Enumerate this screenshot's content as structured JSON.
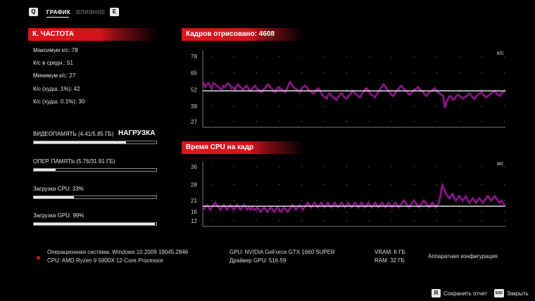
{
  "top_nav": {
    "left_key": "Q",
    "right_key": "E",
    "tabs": [
      {
        "label": "ГРАФИК",
        "active": true
      },
      {
        "label": "ВЛИЯНИЕ",
        "active": false
      }
    ]
  },
  "fps_panel": {
    "title": "К. ЧАСТОТА",
    "stats": [
      "Максимум к/с: 78",
      "К/с в средн.: 51",
      "Минимум к/с: 27",
      "К/с (худш. 1%): 42",
      "К/с (худш. 0.1%): 30"
    ]
  },
  "load_panel": {
    "heading": "НАГРУЗКА",
    "meters": [
      {
        "label": "ВИДЕОПАМЯТЬ (4.41/5.85 ГБ)",
        "fraction": 0.75
      },
      {
        "label": "ОПЕР. ПАМЯТЬ (5.76/31.91 ГБ)",
        "fraction": 0.18
      },
      {
        "label": "Загрузка CPU: 33%",
        "fraction": 0.33
      },
      {
        "label": "Загрузка GPU: 99%",
        "fraction": 0.99
      }
    ]
  },
  "colors": {
    "accent_red": "#e0141c",
    "series_purple": "#a21d9b",
    "mean_line": "#f2f2f2"
  },
  "chart_data": [
    {
      "type": "line",
      "title": "Кадров отрисовано: 4608",
      "ylabel": "к/с",
      "yticks": [
        78,
        65,
        52,
        39,
        27
      ],
      "ylim": [
        27,
        78
      ],
      "mean": 51,
      "grid": "dotted",
      "series": [
        {
          "values": [
            58,
            54,
            56,
            57,
            55,
            53,
            57,
            56,
            55,
            54,
            53,
            52,
            55,
            54,
            56,
            57,
            55,
            53,
            54,
            52,
            55,
            56,
            54,
            53,
            52,
            54,
            55,
            53,
            51,
            52,
            54,
            55,
            53,
            52,
            51,
            50,
            52,
            53,
            55,
            56,
            54,
            53,
            51,
            50,
            52,
            54,
            53,
            52,
            51,
            50,
            52,
            55,
            58,
            56,
            54,
            53,
            52,
            51,
            50,
            53,
            54,
            55,
            54,
            52,
            51,
            50,
            49,
            50,
            52,
            53,
            51,
            49,
            47,
            46,
            45,
            48,
            49,
            47,
            46,
            45,
            44,
            46,
            48,
            49,
            47,
            46,
            45,
            47,
            48,
            50,
            51,
            49,
            48,
            47,
            46,
            48,
            50,
            52,
            53,
            51,
            49,
            48,
            47,
            46,
            48,
            50,
            52,
            54,
            56,
            55,
            53,
            51,
            50,
            48,
            47,
            49,
            51,
            52,
            54,
            55,
            53,
            52,
            51,
            49,
            48,
            50,
            51,
            52,
            53,
            54,
            52,
            51,
            50,
            48,
            47,
            49,
            50,
            51,
            52,
            53,
            51,
            50,
            49,
            48,
            47,
            38,
            42,
            45,
            47,
            46,
            44,
            45,
            47,
            48,
            47,
            46,
            45,
            46,
            47,
            48,
            49,
            47,
            46,
            45,
            47,
            48,
            49,
            50,
            48,
            47,
            46,
            47,
            48,
            49,
            50,
            51,
            49,
            48,
            47,
            49,
            50,
            51
          ]
        }
      ]
    },
    {
      "type": "line",
      "title": "Время CPU на кадр",
      "ylabel": "мс",
      "yticks": [
        36,
        28,
        21,
        16,
        12
      ],
      "ylim": [
        12,
        36
      ],
      "mean": 18.5,
      "grid": "dotted",
      "series": [
        {
          "values": [
            17,
            18,
            19,
            18,
            17,
            18,
            19,
            20,
            19,
            18,
            17,
            18,
            19,
            18,
            17,
            18,
            19,
            18,
            17,
            18,
            19,
            18,
            17,
            18,
            19,
            18,
            17,
            18,
            17,
            18,
            17,
            17,
            18,
            17,
            16,
            17,
            18,
            17,
            16,
            17,
            18,
            17,
            16,
            17,
            18,
            17,
            16,
            17,
            18,
            17,
            16,
            17,
            18,
            19,
            18,
            17,
            18,
            19,
            18,
            17,
            18,
            19,
            20,
            19,
            18,
            19,
            20,
            19,
            18,
            19,
            20,
            19,
            18,
            19,
            20,
            19,
            18,
            19,
            20,
            19,
            18,
            19,
            20,
            19,
            18,
            19,
            20,
            19,
            18,
            19,
            20,
            19,
            18,
            19,
            20,
            19,
            18,
            19,
            20,
            19,
            18,
            19,
            20,
            19,
            18,
            19,
            20,
            19,
            18,
            19,
            20,
            19,
            18,
            19,
            20,
            19,
            18,
            19,
            20,
            21,
            20,
            19,
            18,
            19,
            20,
            21,
            20,
            19,
            18,
            19,
            20,
            21,
            20,
            19,
            18,
            19,
            20,
            19,
            18,
            19,
            20,
            24,
            28,
            26,
            24,
            23,
            22,
            23,
            24,
            22,
            21,
            22,
            23,
            22,
            21,
            22,
            23,
            21,
            20,
            21,
            22,
            21,
            20,
            21,
            22,
            21,
            20,
            21,
            22,
            23,
            22,
            21,
            22,
            23,
            22,
            21,
            20,
            21,
            20,
            19
          ]
        }
      ]
    }
  ],
  "system_info": {
    "os": "Операционная система: Windows 10 2009 19045.2846",
    "cpu": "CPU: AMD Ryzen 9 5900X 12-Core Processor",
    "gpu": "GPU: NVIDIA GeForce GTX 1660 SUPER",
    "driver": "Драйвер GPU: 516.59",
    "vram": "VRAM: 6 ГБ",
    "ram": "RAM: 32 ГБ",
    "hw_config": "Аппаратная конфигурация"
  },
  "footer": {
    "save_key": "R",
    "save_label": "Сохранить отчет",
    "close_key": "ESC",
    "close_label": "Закрыть"
  }
}
